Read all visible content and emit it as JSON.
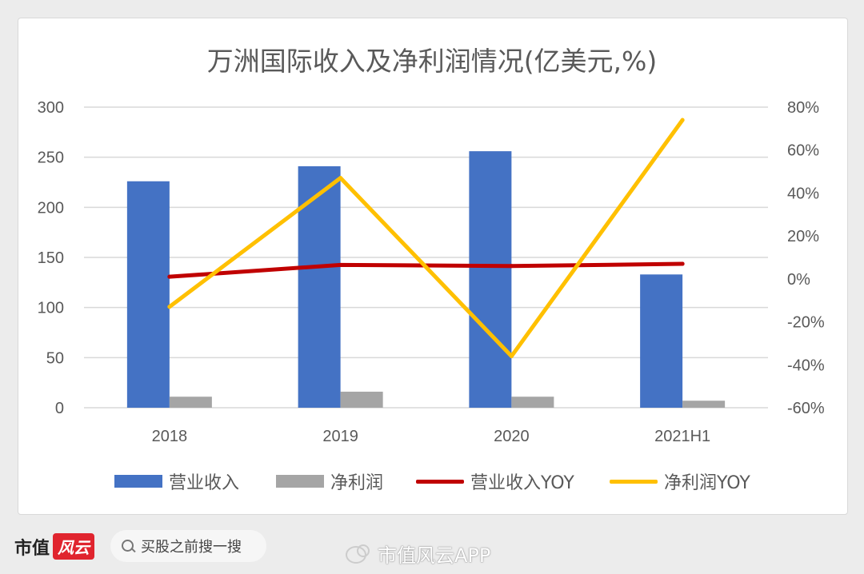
{
  "chart_data": {
    "type": "bar",
    "title": "万洲国际收入及净利润情况(亿美元,%)",
    "categories": [
      "2018",
      "2019",
      "2020",
      "2021H1"
    ],
    "y_left": {
      "ylim": [
        0,
        300
      ],
      "ticks": [
        0,
        50,
        100,
        150,
        200,
        250,
        300
      ]
    },
    "y_right": {
      "ylim": [
        -60,
        80
      ],
      "ticks": [
        "-60%",
        "-40%",
        "-20%",
        "0%",
        "20%",
        "40%",
        "60%",
        "80%"
      ]
    },
    "series": [
      {
        "name": "营业收入",
        "type": "bar",
        "axis": "left",
        "color": "#4472c4",
        "values": [
          226,
          241,
          256,
          133
        ]
      },
      {
        "name": "净利润",
        "type": "bar",
        "axis": "left",
        "color": "#a5a5a5",
        "values": [
          11,
          16,
          11,
          7
        ]
      },
      {
        "name": "营业收入YOY",
        "type": "line",
        "axis": "right",
        "color": "#c00000",
        "values": [
          1,
          6.5,
          6,
          7
        ]
      },
      {
        "name": "净利润YOY",
        "type": "line",
        "axis": "right",
        "color": "#ffc000",
        "values": [
          -13,
          47,
          -36,
          74
        ]
      }
    ],
    "legend_position": "bottom",
    "grid": true
  },
  "footer": {
    "brand_left": "市值",
    "brand_red": "风云",
    "search_text": "买股之前搜一搜",
    "watermark": "市值风云APP"
  }
}
